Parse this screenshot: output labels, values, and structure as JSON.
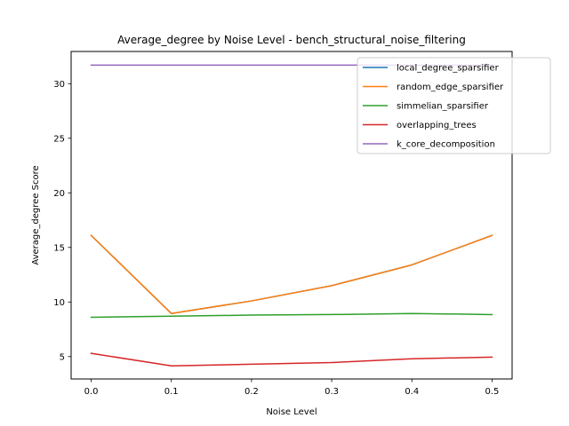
{
  "chart_data": {
    "type": "line",
    "title": "Average_degree by Noise Level - bench_structural_noise_filtering",
    "xlabel": "Noise Level",
    "ylabel": "Average_degree Score",
    "x": [
      0.0,
      0.1,
      0.2,
      0.3,
      0.4,
      0.5
    ],
    "x_tick_labels": [
      "0.0",
      "0.1",
      "0.2",
      "0.3",
      "0.4",
      "0.5"
    ],
    "y_ticks": [
      5,
      10,
      15,
      20,
      25,
      30
    ],
    "xlim": [
      -0.025,
      0.525
    ],
    "ylim": [
      2.95,
      32.95
    ],
    "grid": false,
    "legend_position": "top-right",
    "series": [
      {
        "name": "local_degree_sparsifier",
        "color": "#1f77b4",
        "values": [
          16.1,
          8.95,
          10.1,
          11.5,
          13.4,
          16.1
        ]
      },
      {
        "name": "random_edge_sparsifier",
        "color": "#ff7f0e",
        "values": [
          16.1,
          8.95,
          10.1,
          11.5,
          13.4,
          16.1
        ]
      },
      {
        "name": "simmelian_sparsifier",
        "color": "#2ca02c",
        "values": [
          8.6,
          8.7,
          8.8,
          8.85,
          8.95,
          8.85
        ]
      },
      {
        "name": "overlapping_trees",
        "color": "#d62728",
        "values": [
          5.3,
          4.15,
          4.3,
          4.45,
          4.8,
          4.95
        ]
      },
      {
        "name": "k_core_decomposition",
        "color": "#9467bd",
        "values": [
          31.7,
          31.7,
          31.7,
          31.7,
          31.7,
          31.7
        ]
      }
    ]
  }
}
